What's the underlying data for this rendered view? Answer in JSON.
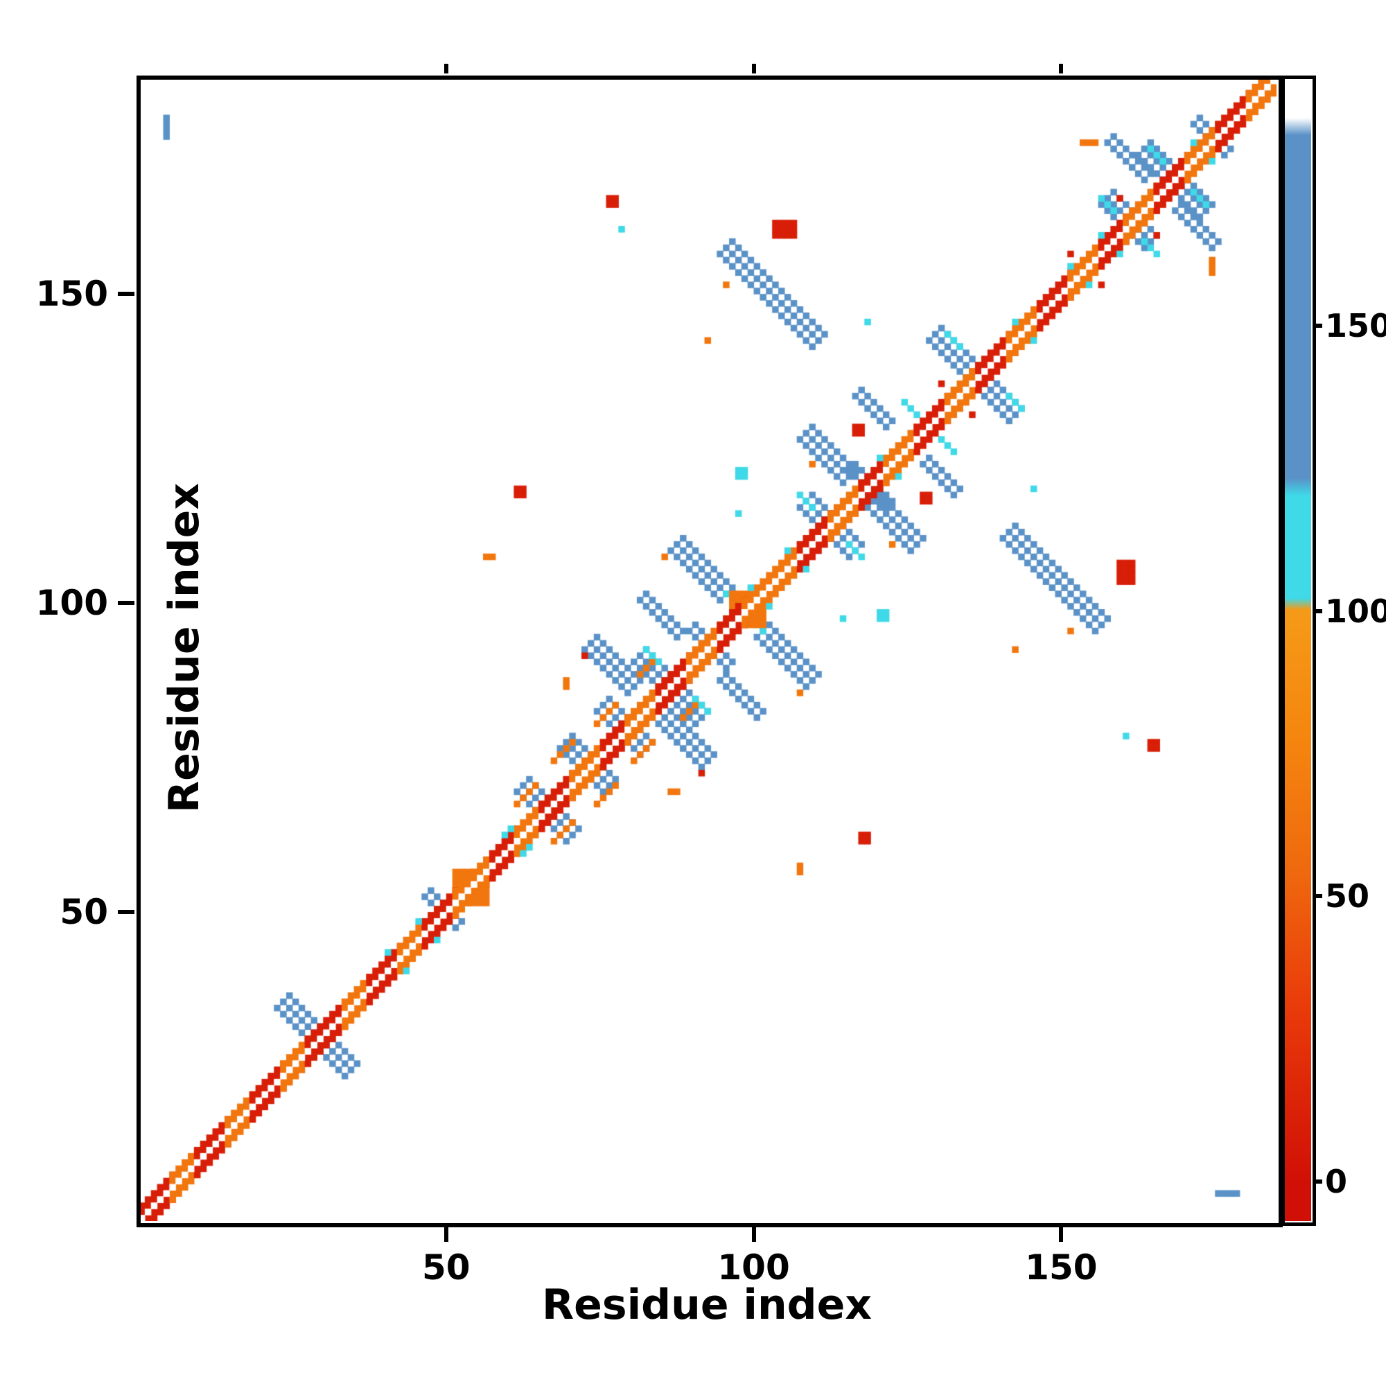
{
  "chart_data": {
    "type": "heatmap",
    "title": "",
    "xlabel": "Residue index",
    "ylabel": "Residue index",
    "x_range": [
      0,
      185
    ],
    "y_range": [
      0,
      185
    ],
    "x_ticks": [
      50,
      100,
      150
    ],
    "y_ticks": [
      50,
      100,
      150
    ],
    "grid": false,
    "background": "#ffffff",
    "legend_position": "none",
    "colorbar": {
      "range": [
        -7,
        193
      ],
      "ticks": [
        0,
        50,
        100,
        150
      ],
      "stops": [
        [
          0,
          "#d01006"
        ],
        [
          30,
          "#e93a0a"
        ],
        [
          55,
          "#ef6a0e"
        ],
        [
          78,
          "#f5860f"
        ],
        [
          100,
          "#f59a18"
        ],
        [
          102,
          "#3fd9e8"
        ],
        [
          120,
          "#3fd9e8"
        ],
        [
          123,
          "#5a92c8"
        ],
        [
          183,
          "#5a92c8"
        ],
        [
          186,
          "#ffffff"
        ],
        [
          193,
          "#ffffff"
        ]
      ]
    },
    "value_key": {
      "red": 10,
      "orange": 65,
      "cyan": 110,
      "blue": 150
    },
    "diagonal_band": {
      "halfwidth": 2,
      "segments": [
        {
          "a": 1,
          "b": 6,
          "v": 10
        },
        {
          "a": 6,
          "b": 10,
          "v": 65
        },
        {
          "a": 10,
          "b": 15,
          "v": 10
        },
        {
          "a": 15,
          "b": 19,
          "v": 65
        },
        {
          "a": 19,
          "b": 24,
          "v": 10
        },
        {
          "a": 24,
          "b": 28,
          "v": 65
        },
        {
          "a": 28,
          "b": 34,
          "v": 10
        },
        {
          "a": 34,
          "b": 38,
          "v": 65
        },
        {
          "a": 38,
          "b": 43,
          "v": 10
        },
        {
          "a": 43,
          "b": 47,
          "v": 65
        },
        {
          "a": 47,
          "b": 52,
          "v": 10
        },
        {
          "a": 52,
          "b": 58,
          "v": 65
        },
        {
          "a": 58,
          "b": 62,
          "v": 10
        },
        {
          "a": 62,
          "b": 66,
          "v": 65
        },
        {
          "a": 66,
          "b": 71,
          "v": 10
        },
        {
          "a": 71,
          "b": 76,
          "v": 65
        },
        {
          "a": 76,
          "b": 80,
          "v": 10
        },
        {
          "a": 80,
          "b": 85,
          "v": 65
        },
        {
          "a": 85,
          "b": 90,
          "v": 10
        },
        {
          "a": 90,
          "b": 95,
          "v": 65
        },
        {
          "a": 95,
          "b": 99,
          "v": 10
        },
        {
          "a": 99,
          "b": 108,
          "v": 65
        },
        {
          "a": 108,
          "b": 113,
          "v": 10
        },
        {
          "a": 113,
          "b": 118,
          "v": 65
        },
        {
          "a": 118,
          "b": 122,
          "v": 10
        },
        {
          "a": 122,
          "b": 127,
          "v": 65
        },
        {
          "a": 127,
          "b": 132,
          "v": 10
        },
        {
          "a": 132,
          "b": 137,
          "v": 65
        },
        {
          "a": 137,
          "b": 142,
          "v": 10
        },
        {
          "a": 142,
          "b": 147,
          "v": 65
        },
        {
          "a": 147,
          "b": 152,
          "v": 10
        },
        {
          "a": 152,
          "b": 157,
          "v": 65
        },
        {
          "a": 157,
          "b": 161,
          "v": 10
        },
        {
          "a": 161,
          "b": 166,
          "v": 65
        },
        {
          "a": 166,
          "b": 171,
          "v": 10
        },
        {
          "a": 171,
          "b": 176,
          "v": 65
        },
        {
          "a": 176,
          "b": 181,
          "v": 10
        },
        {
          "a": 181,
          "b": 185,
          "v": 65
        }
      ],
      "cyan_specks": [
        {
          "i": 41,
          "o": 3
        },
        {
          "i": 49,
          "o": -3
        },
        {
          "i": 60,
          "o": 3
        },
        {
          "i": 64,
          "o": -3
        },
        {
          "i": 100,
          "o": 3
        },
        {
          "i": 109,
          "o": -3
        },
        {
          "i": 121,
          "o": 3
        },
        {
          "i": 146,
          "o": -3
        },
        {
          "i": 152,
          "o": 3
        },
        {
          "i": 160,
          "o": -3
        },
        {
          "i": 172,
          "o": 3
        }
      ]
    },
    "features": [
      {
        "c": [
          30,
          30
        ],
        "len": 12,
        "w": 3,
        "dir": "anti",
        "v": 150
      },
      {
        "c": [
          50,
          50
        ],
        "len": 6,
        "w": 2,
        "dir": "anti",
        "v": 150
      },
      {
        "c": [
          67,
          67
        ],
        "len": 9,
        "w": 3,
        "dir": "anti",
        "v": 150
      },
      {
        "c": [
          74,
          74
        ],
        "len": 8,
        "w": 3,
        "dir": "anti",
        "v": 150
      },
      {
        "c": [
          80,
          80
        ],
        "len": 8,
        "w": 3,
        "dir": "anti",
        "v": 150
      },
      {
        "c": [
          87,
          87
        ],
        "len": 11,
        "w": 3,
        "dir": "anti",
        "v": 150
      },
      {
        "c": [
          93,
          93
        ],
        "len": 7,
        "w": 2,
        "dir": "anti",
        "v": 150
      },
      {
        "c": [
          78,
          90
        ],
        "len": 8,
        "w": 3,
        "dir": "anti",
        "v": 150
      },
      {
        "c": [
          85,
          98
        ],
        "len": 7,
        "w": 2,
        "dir": "anti",
        "v": 150
      },
      {
        "c": [
          92,
          106
        ],
        "len": 9,
        "w": 3,
        "dir": "anti",
        "v": 150
      },
      {
        "c": [
          113,
          113
        ],
        "len": 9,
        "w": 3,
        "dir": "anti",
        "v": 150
      },
      {
        "c": [
          119,
          119
        ],
        "len": 7,
        "w": 2,
        "dir": "anti",
        "v": 150
      },
      {
        "c": [
          113,
          124
        ],
        "len": 8,
        "w": 3,
        "dir": "anti",
        "v": 150
      },
      {
        "c": [
          120,
          131
        ],
        "len": 6,
        "w": 2,
        "dir": "anti",
        "v": 150
      },
      {
        "c": [
          137,
          137
        ],
        "len": 14,
        "w": 3,
        "dir": "anti",
        "v": 150
      },
      {
        "c": [
          104,
          150
        ],
        "len": 16,
        "w": 3,
        "dir": "anti",
        "v": 150
      },
      {
        "c": [
          162,
          162
        ],
        "len": 8,
        "w": 3,
        "dir": "anti",
        "v": 150
      },
      {
        "c": [
          169,
          169
        ],
        "len": 11,
        "w": 3,
        "dir": "anti",
        "v": 150
      },
      {
        "c": [
          175,
          175
        ],
        "len": 6,
        "w": 2,
        "dir": "anti",
        "v": 150
      },
      {
        "c": [
          161,
          172
        ],
        "len": 7,
        "w": 2,
        "dir": "anti",
        "v": 150
      },
      {
        "c": [
          70,
          64
        ],
        "len": 4,
        "w": 1,
        "dir": "para",
        "v": 65
      },
      {
        "c": [
          77,
          70
        ],
        "len": 4,
        "w": 1,
        "dir": "para",
        "v": 65
      },
      {
        "c": [
          83,
          77
        ],
        "len": 4,
        "w": 1,
        "dir": "para",
        "v": 65
      },
      {
        "c": [
          90,
          83
        ],
        "len": 3,
        "w": 1,
        "dir": "para",
        "v": 65
      },
      {
        "c": [
          84,
          92
        ],
        "len": 3,
        "w": 1,
        "dir": "anti",
        "v": 110
      },
      {
        "c": [
          97,
          101
        ],
        "len": 3,
        "w": 1,
        "dir": "anti",
        "v": 110
      },
      {
        "c": [
          109,
          117
        ],
        "len": 3,
        "w": 1,
        "dir": "anti",
        "v": 110
      },
      {
        "c": [
          126,
          132
        ],
        "len": 3,
        "w": 1,
        "dir": "anti",
        "v": 110
      },
      {
        "c": [
          133,
          143
        ],
        "len": 3,
        "w": 1,
        "dir": "anti",
        "v": 110
      },
      {
        "c": [
          158,
          165
        ],
        "len": 3,
        "w": 1,
        "dir": "anti",
        "v": 110
      },
      {
        "c": [
          166,
          173
        ],
        "len": 3,
        "w": 1,
        "dir": "anti",
        "v": 110
      }
    ],
    "blobs": [
      {
        "x": 104,
        "y": 160,
        "w": 4,
        "h": 3,
        "v": 10
      },
      {
        "x": 77,
        "y": 165,
        "w": 2,
        "h": 2,
        "v": 10
      },
      {
        "x": 79,
        "y": 161,
        "w": 1,
        "h": 1,
        "v": 110
      },
      {
        "x": 96,
        "y": 152,
        "w": 1,
        "h": 1,
        "v": 65
      },
      {
        "x": 93,
        "y": 143,
        "w": 1,
        "h": 1,
        "v": 65
      },
      {
        "x": 62,
        "y": 118,
        "w": 2,
        "h": 2,
        "v": 10
      },
      {
        "x": 57,
        "y": 108,
        "w": 2,
        "h": 1,
        "v": 65
      },
      {
        "x": 70,
        "y": 87,
        "w": 1,
        "h": 2,
        "v": 65
      },
      {
        "x": 73,
        "y": 92,
        "w": 1,
        "h": 1,
        "v": 10
      },
      {
        "x": 110,
        "y": 123,
        "w": 1,
        "h": 1,
        "v": 65
      },
      {
        "x": 117,
        "y": 128,
        "w": 2,
        "h": 2,
        "v": 10
      },
      {
        "x": 5,
        "y": 176,
        "w": 1,
        "h": 4,
        "v": 150
      },
      {
        "x": 131,
        "y": 136,
        "w": 1,
        "h": 1,
        "v": 10
      },
      {
        "x": 152,
        "y": 157,
        "w": 1,
        "h": 1,
        "v": 10
      },
      {
        "x": 154,
        "y": 175,
        "w": 3,
        "h": 1,
        "v": 65
      },
      {
        "x": 160,
        "y": 166,
        "w": 1,
        "h": 1,
        "v": 10
      },
      {
        "x": 98,
        "y": 115,
        "w": 1,
        "h": 1,
        "v": 110
      },
      {
        "x": 119,
        "y": 146,
        "w": 1,
        "h": 1,
        "v": 110
      },
      {
        "x": 86,
        "y": 108,
        "w": 1,
        "h": 1,
        "v": 65
      },
      {
        "x": 98,
        "y": 121,
        "w": 2,
        "h": 2,
        "v": 110
      },
      {
        "x": 52,
        "y": 54,
        "w": 4,
        "h": 4,
        "v": 65
      },
      {
        "x": 97,
        "y": 99,
        "w": 4,
        "h": 4,
        "v": 65
      }
    ]
  }
}
